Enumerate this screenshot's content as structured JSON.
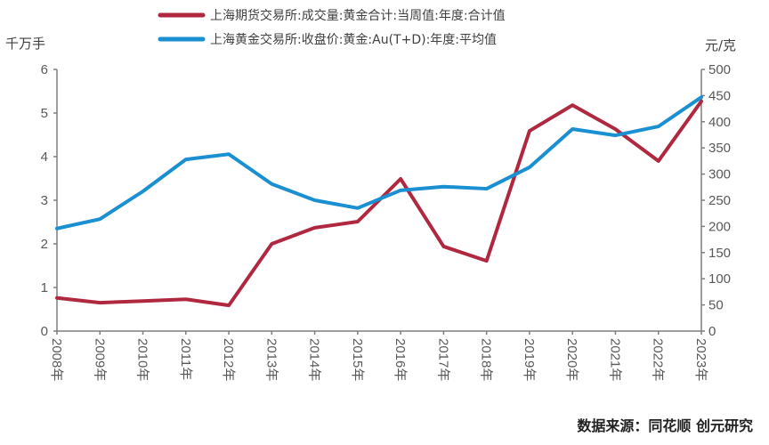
{
  "chart_data": {
    "type": "line",
    "categories": [
      "2008年",
      "2009年",
      "2010年",
      "2011年",
      "2012年",
      "2013年",
      "2014年",
      "2015年",
      "2016年",
      "2017年",
      "2018年",
      "2019年",
      "2020年",
      "2021年",
      "2022年",
      "2023年"
    ],
    "series": [
      {
        "name": "上海期货交易所:成交量:黄金合计:当周值:年度:合计值",
        "axis": "left",
        "color": "#b0283f",
        "values": [
          0.76,
          0.65,
          0.69,
          0.73,
          0.59,
          2.0,
          2.37,
          2.51,
          3.49,
          1.94,
          1.61,
          4.59,
          5.18,
          4.63,
          3.9,
          5.27
        ]
      },
      {
        "name": "上海黄金交易所:收盘价:黄金:Au(T+D):年度:平均值",
        "axis": "right",
        "color": "#1a8fd1",
        "values": [
          196,
          214,
          267,
          328,
          338,
          281,
          250,
          235,
          269,
          276,
          272,
          313,
          386,
          374,
          391,
          447
        ]
      }
    ],
    "y_left": {
      "label": "千万手",
      "ylim": [
        0,
        6
      ],
      "ticks": [
        "0",
        "1",
        "2",
        "3",
        "4",
        "5",
        "6"
      ]
    },
    "y_right": {
      "label": "元/克",
      "ylim": [
        0,
        500
      ],
      "ticks": [
        "0",
        "50",
        "100",
        "150",
        "200",
        "250",
        "300",
        "350",
        "400",
        "450",
        "500"
      ]
    },
    "grid": false,
    "legend": "top"
  },
  "source": "数据来源：同花顺 创元研究"
}
